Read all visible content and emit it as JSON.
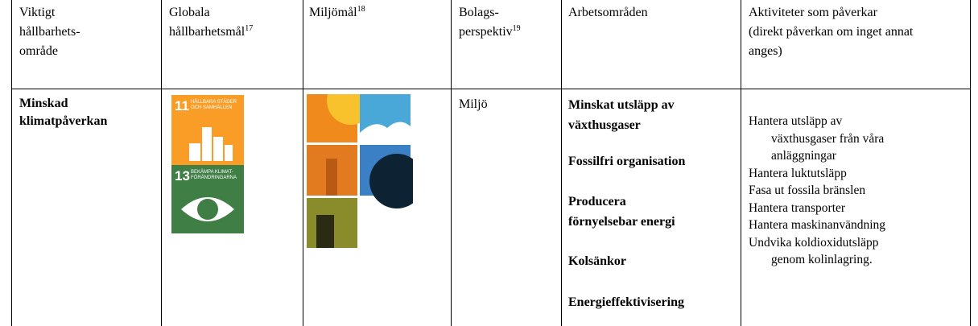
{
  "header": [
    {
      "lines": [
        "Viktigt",
        "hållbarhets-",
        "område"
      ]
    },
    {
      "lines": [
        "Globala",
        "hållbarhetsmål"
      ],
      "note": "17"
    },
    {
      "lines": [
        "Miljömål"
      ],
      "note": "18"
    },
    {
      "lines": [
        "Bolags-",
        "perspektiv"
      ],
      "note": "19"
    },
    {
      "lines": [
        "Arbetsområden"
      ]
    },
    {
      "lines": [
        "Aktiviteter som påverkar",
        "(direkt påverkan om inget annat",
        "anges)"
      ]
    }
  ],
  "row": {
    "area": [
      "Minskad",
      "klimatpåverkan"
    ],
    "sdg": [
      {
        "number": "11",
        "label": "HÅLLBARA STÄDER OCH SAMHÄLLEN"
      },
      {
        "number": "13",
        "label": "BEKÄMPA KLIMAT-FÖRÄNDRINGARNA"
      }
    ],
    "perspective": "Miljö",
    "work_areas": [
      [
        "Minskat utsläpp av",
        "växthusgaser"
      ],
      [
        "Fossilfri organisation"
      ],
      [
        "Producera",
        "förnyelsebar energi"
      ],
      [
        "Kolsänkor"
      ],
      [
        "Energieffektivisering"
      ]
    ],
    "activities": [
      [
        "Hantera utsläpp av",
        "växthusgaser från våra",
        "anläggningar"
      ],
      [
        "Hantera luktutsläpp"
      ],
      [
        "Fasa ut fossila bränslen"
      ],
      [
        "Hantera transporter"
      ],
      [
        "Hantera maskinanvändning"
      ],
      [
        "Undvika koldioxidutsläpp",
        "genom kolinlagring."
      ]
    ]
  }
}
